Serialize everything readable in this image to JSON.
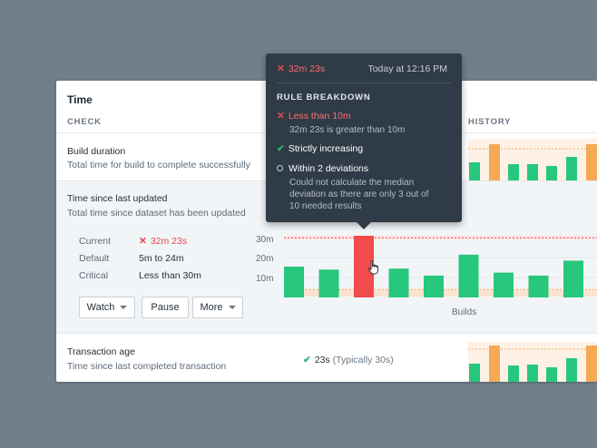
{
  "card": {
    "title": "Time",
    "col_check": "CHECK",
    "col_history": "HISTORY"
  },
  "rows": [
    {
      "name": "Build duration",
      "desc": "Total time for build to complete successfully"
    },
    {
      "name": "Time since last updated",
      "desc": "Total time since dataset has been updated"
    },
    {
      "name": "Transaction age",
      "desc": "Time since last completed transaction"
    }
  ],
  "details": {
    "current_label": "Current",
    "current_value": "32m 23s",
    "default_label": "Default",
    "default_value": "5m to 24m",
    "critical_label": "Critical",
    "critical_value": "Less than 30m"
  },
  "buttons": {
    "watch": "Watch",
    "pause": "Pause",
    "more": "More"
  },
  "transaction_status": {
    "value": "23s",
    "typical": "(Typically 30s)"
  },
  "tooltip": {
    "value": "32m 23s",
    "time": "Today at 12:16 PM",
    "heading": "RULE BREAKDOWN",
    "rules": [
      {
        "status": "fail",
        "title": "Less than 10m",
        "detail": [
          "32m 23s is greater than 10m"
        ]
      },
      {
        "status": "pass",
        "title": "Strictly increasing",
        "detail": []
      },
      {
        "status": "unknown",
        "title": "Within 2 deviations",
        "detail": [
          "Could not calculate the median",
          "deviation as there are only 3 out of",
          "10 needed results"
        ]
      }
    ]
  },
  "colors": {
    "pass": "#27c77e",
    "fail": "#f24b4b",
    "warn": "#f5a955",
    "panel": "#2f3b47"
  },
  "chart_data": [
    {
      "type": "bar",
      "title": "",
      "xlabel": "Builds",
      "ylabel": "",
      "y_ticks": [
        "10m",
        "20m",
        "30m"
      ],
      "ylim": [
        0,
        31
      ],
      "threshold_minutes": 30,
      "default_band_minutes": [
        0.5,
        4
      ],
      "values_minutes": [
        15.5,
        14,
        31,
        14.5,
        11,
        21.5,
        12.5,
        11,
        18.5
      ],
      "status": [
        "pass",
        "pass",
        "fail",
        "pass",
        "pass",
        "pass",
        "pass",
        "pass",
        "pass"
      ]
    }
  ]
}
